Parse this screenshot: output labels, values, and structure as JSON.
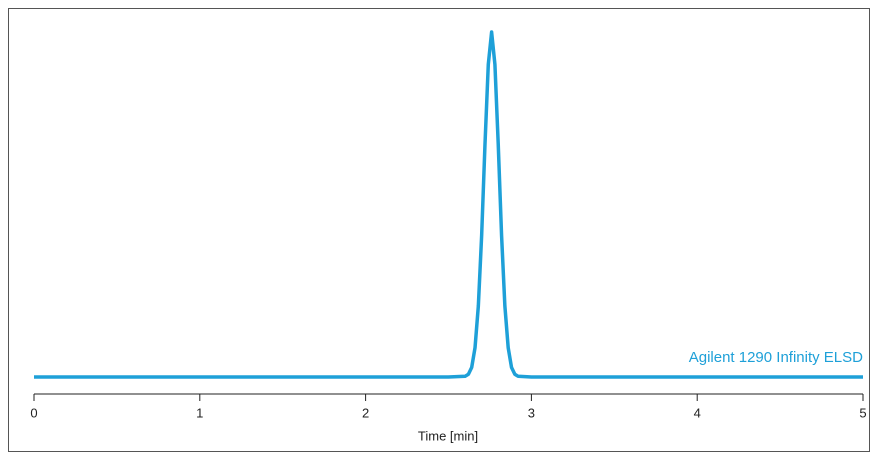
{
  "chart_data": {
    "type": "line",
    "x_label": "Time [min]",
    "x": [
      0,
      2.5,
      2.6,
      2.62,
      2.64,
      2.66,
      2.68,
      2.7,
      2.72,
      2.74,
      2.76,
      2.78,
      2.8,
      2.82,
      2.84,
      2.86,
      2.88,
      2.9,
      2.92,
      3,
      5
    ],
    "series": [
      {
        "name": "Agilent 1290 Infinity ELSD",
        "color": "#1ea0d8",
        "values": [
          0,
          0,
          0.2,
          0.8,
          2.8,
          8.5,
          20.6,
          41.1,
          67.4,
          90.6,
          100,
          90.6,
          67.4,
          41.1,
          20.6,
          8.5,
          2.8,
          0.8,
          0.2,
          0,
          0
        ]
      }
    ],
    "xlim": [
      0,
      5
    ],
    "xticks": [
      0,
      1,
      2,
      3,
      4,
      5
    ],
    "ylim": [
      0,
      100
    ]
  }
}
